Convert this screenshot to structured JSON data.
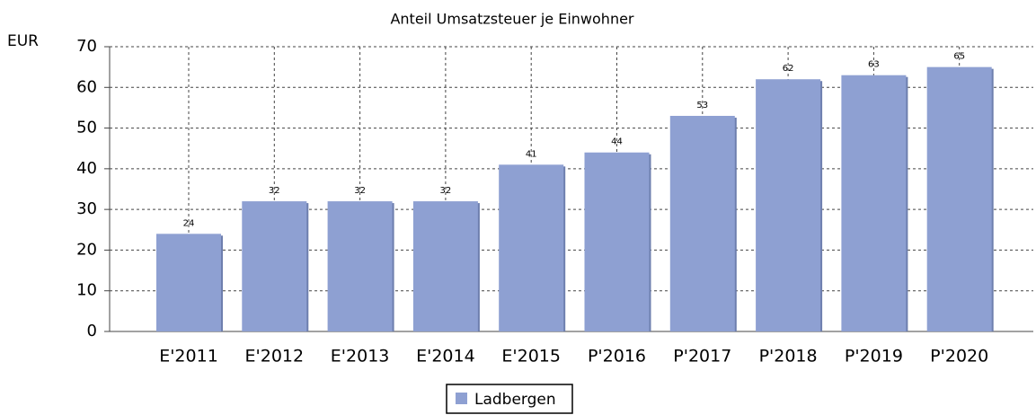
{
  "chart_data": {
    "type": "bar",
    "title": "Anteil Umsatzsteuer je Einwohner",
    "y_label": "EUR",
    "categories": [
      "E'2011",
      "E'2012",
      "E'2013",
      "E'2014",
      "E'2015",
      "P'2016",
      "P'2017",
      "P'2018",
      "P'2019",
      "P'2020"
    ],
    "series": [
      {
        "name": "Ladbergen",
        "color": "#8ea0d2",
        "values": [
          24,
          32,
          32,
          32,
          41,
          44,
          53,
          62,
          63,
          65
        ]
      }
    ],
    "ylim": [
      0,
      70
    ],
    "yticks": [
      0,
      10,
      20,
      30,
      40,
      50,
      60,
      70
    ],
    "grid": true,
    "legend": "bottom"
  }
}
